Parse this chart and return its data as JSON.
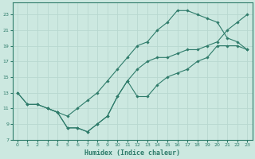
{
  "xlabel": "Humidex (Indice chaleur)",
  "bg_color": "#cce8e0",
  "line_color": "#2e7b6a",
  "grid_color": "#b0d8cc",
  "xlim": [
    -0.5,
    23.5
  ],
  "ylim": [
    7,
    24.5
  ],
  "xticks": [
    0,
    1,
    2,
    3,
    4,
    5,
    6,
    7,
    8,
    9,
    10,
    11,
    12,
    13,
    14,
    15,
    16,
    17,
    18,
    19,
    20,
    21,
    22,
    23
  ],
  "yticks": [
    7,
    9,
    11,
    13,
    15,
    17,
    19,
    21,
    23
  ],
  "line_upper_x": [
    0,
    1,
    2,
    3,
    4,
    5,
    6,
    7,
    8,
    9,
    10,
    11,
    12,
    13,
    14,
    15,
    16,
    17,
    18,
    19,
    20,
    21,
    22,
    23
  ],
  "line_upper_y": [
    13,
    11.5,
    11.5,
    11,
    10.5,
    10,
    11,
    12,
    13,
    14.5,
    16,
    17.5,
    19,
    19.5,
    21,
    22,
    23.5,
    23.5,
    23,
    22.5,
    22,
    20,
    19.5,
    18.5
  ],
  "line_lower_x": [
    0,
    1,
    2,
    3,
    4,
    5,
    6,
    7,
    8,
    9,
    10,
    11,
    12,
    13,
    14,
    15,
    16,
    17,
    18,
    19,
    20,
    21,
    22,
    23
  ],
  "line_lower_y": [
    13,
    11.5,
    11.5,
    11,
    10.5,
    8.5,
    8.5,
    8,
    9,
    10,
    12.5,
    14.5,
    12.5,
    12.5,
    14,
    15,
    15.5,
    16,
    17,
    17.5,
    19,
    19,
    19,
    18.5
  ],
  "line_diag_x": [
    3,
    4,
    5,
    6,
    7,
    8,
    9,
    10,
    11,
    12,
    13,
    14,
    15,
    16,
    17,
    18,
    19,
    20,
    21,
    22,
    23
  ],
  "line_diag_y": [
    11,
    10.5,
    8.5,
    8.5,
    8,
    9,
    10,
    12.5,
    14.5,
    16,
    17,
    17.5,
    17.5,
    18,
    18.5,
    18.5,
    19,
    19.5,
    21,
    22,
    23
  ]
}
